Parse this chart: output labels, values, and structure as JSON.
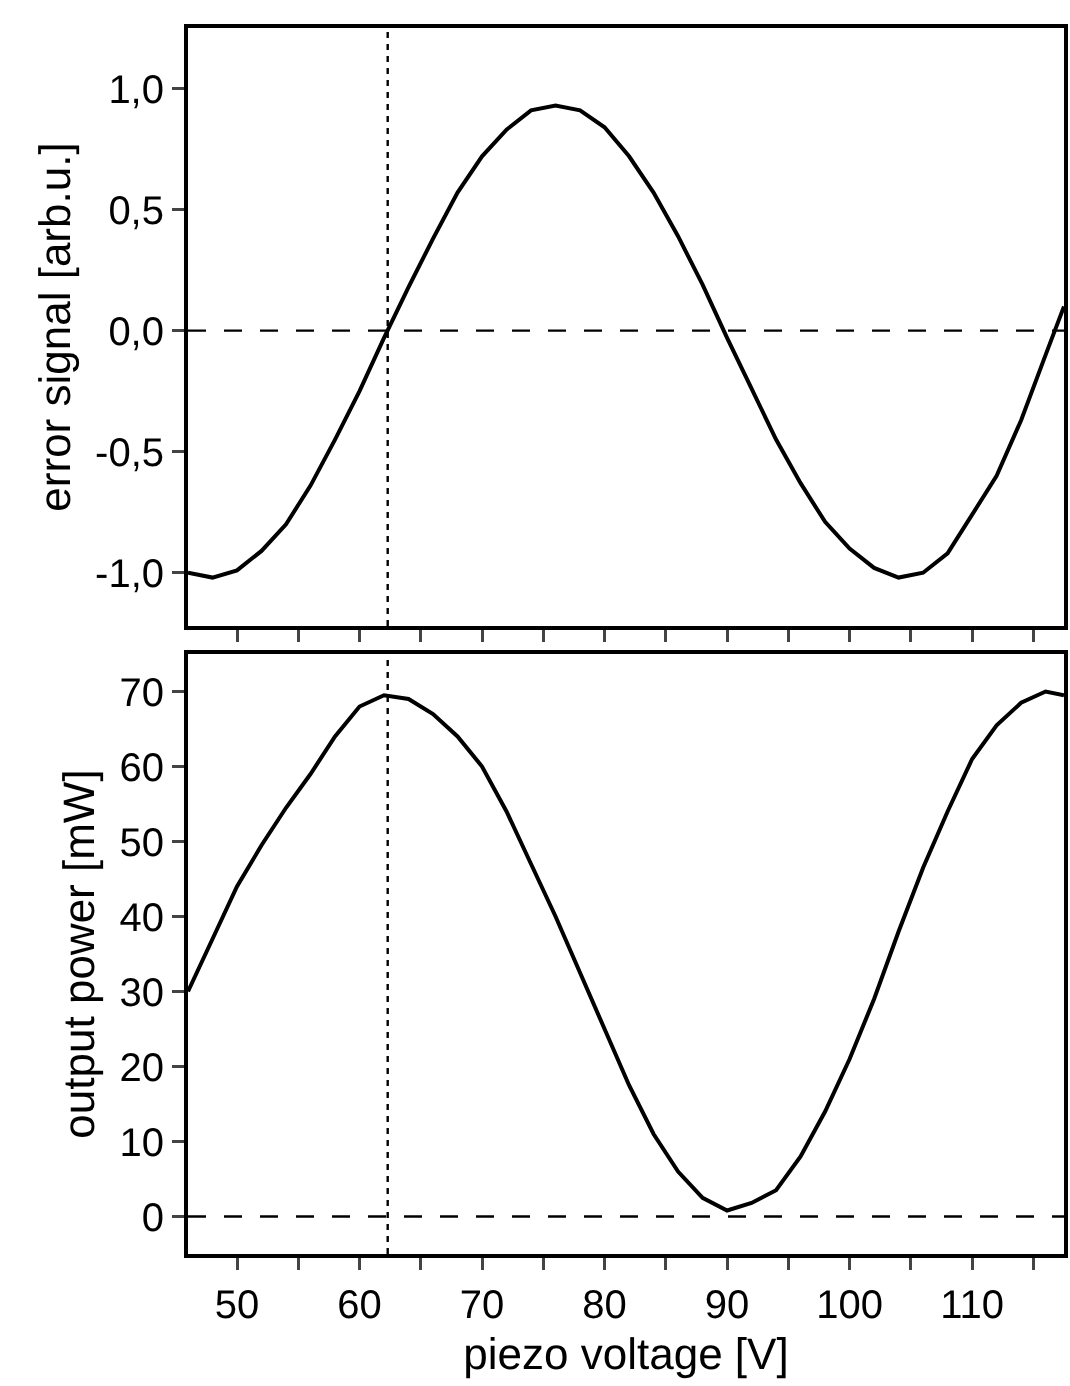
{
  "chart_data": [
    {
      "type": "line",
      "ylabel": "error signal [arb.u.]",
      "tick_labels": "y",
      "grid": false,
      "marker": "none",
      "line_style": "solid",
      "xlim": [
        46,
        117.5
      ],
      "xticks": [
        {
          "value": 50,
          "label": null
        },
        {
          "value": 55,
          "label": null
        },
        {
          "value": 60,
          "label": null
        },
        {
          "value": 65,
          "label": null
        },
        {
          "value": 70,
          "label": null
        },
        {
          "value": 75,
          "label": null
        },
        {
          "value": 80,
          "label": null
        },
        {
          "value": 85,
          "label": null
        },
        {
          "value": 90,
          "label": null
        },
        {
          "value": 95,
          "label": null
        },
        {
          "value": 100,
          "label": null
        },
        {
          "value": 105,
          "label": null
        },
        {
          "value": 110,
          "label": null
        },
        {
          "value": 115,
          "label": null
        }
      ],
      "ylim": [
        -1.22,
        1.25
      ],
      "yticks": [
        {
          "value": -1,
          "label": "-1,0"
        },
        {
          "value": -0.5,
          "label": "-0,5"
        },
        {
          "value": 0,
          "label": "0,0"
        },
        {
          "value": 0.5,
          "label": "0,5"
        },
        {
          "value": 1,
          "label": "1,0"
        }
      ],
      "x": [
        46,
        48,
        50,
        52,
        54,
        56,
        58,
        60,
        62,
        64,
        66,
        68,
        70,
        72,
        74,
        76,
        78,
        80,
        82,
        84,
        86,
        88,
        90,
        92,
        94,
        96,
        98,
        100,
        102,
        104,
        106,
        108,
        110,
        112,
        114,
        116,
        117.5
      ],
      "series": [
        {
          "color": "#000000",
          "values": [
            -1.0,
            -1.02,
            -0.99,
            -0.91,
            -0.8,
            -0.64,
            -0.45,
            -0.25,
            -0.03,
            0.18,
            0.38,
            0.57,
            0.72,
            0.83,
            0.91,
            0.93,
            0.91,
            0.84,
            0.72,
            0.57,
            0.39,
            0.19,
            -0.03,
            -0.24,
            -0.45,
            -0.63,
            -0.79,
            -0.9,
            -0.98,
            -1.02,
            -1.0,
            -0.92,
            -0.76,
            -0.6,
            -0.37,
            -0.1,
            0.1
          ]
        }
      ],
      "ref_lines": [
        {
          "axis": "x",
          "value": 62.3,
          "line_style": "dotted",
          "color": "#000000"
        },
        {
          "axis": "y",
          "value": 0,
          "line_style": "dashed",
          "color": "#000000"
        }
      ]
    },
    {
      "type": "line",
      "xlabel": "piezo voltage [V]",
      "ylabel": "output power [mW]",
      "grid": false,
      "marker": "none",
      "line_style": "solid",
      "xlim": [
        46,
        117.5
      ],
      "xticks": [
        50,
        {
          "value": 55,
          "label": null
        },
        60,
        {
          "value": 65,
          "label": null
        },
        70,
        {
          "value": 75,
          "label": null
        },
        80,
        {
          "value": 85,
          "label": null
        },
        90,
        {
          "value": 95,
          "label": null
        },
        100,
        {
          "value": 105,
          "label": null
        },
        110,
        {
          "value": 115,
          "label": null
        }
      ],
      "ylim": [
        -5,
        75
      ],
      "yticks": [
        0,
        10,
        20,
        30,
        40,
        50,
        60,
        70
      ],
      "x": [
        46,
        48,
        50,
        52,
        54,
        56,
        58,
        60,
        62,
        64,
        66,
        68,
        70,
        72,
        74,
        76,
        78,
        80,
        82,
        84,
        86,
        88,
        90,
        92,
        94,
        96,
        98,
        100,
        102,
        104,
        106,
        108,
        110,
        112,
        114,
        116,
        117.5
      ],
      "series": [
        {
          "color": "#000000",
          "values": [
            30,
            37,
            44,
            49.5,
            54.5,
            59,
            64,
            68,
            69.5,
            69,
            67,
            64,
            60,
            54,
            47,
            40,
            32.5,
            25,
            17.5,
            11,
            6,
            2.5,
            0.8,
            1.8,
            3.5,
            8,
            14,
            21,
            29,
            38,
            46.5,
            54,
            61,
            65.5,
            68.5,
            70,
            69.5
          ]
        }
      ],
      "ref_lines": [
        {
          "axis": "x",
          "value": 62.3,
          "line_style": "dotted",
          "color": "#000000"
        },
        {
          "axis": "y",
          "value": 0,
          "line_style": "dashed",
          "color": "#000000"
        }
      ]
    }
  ]
}
